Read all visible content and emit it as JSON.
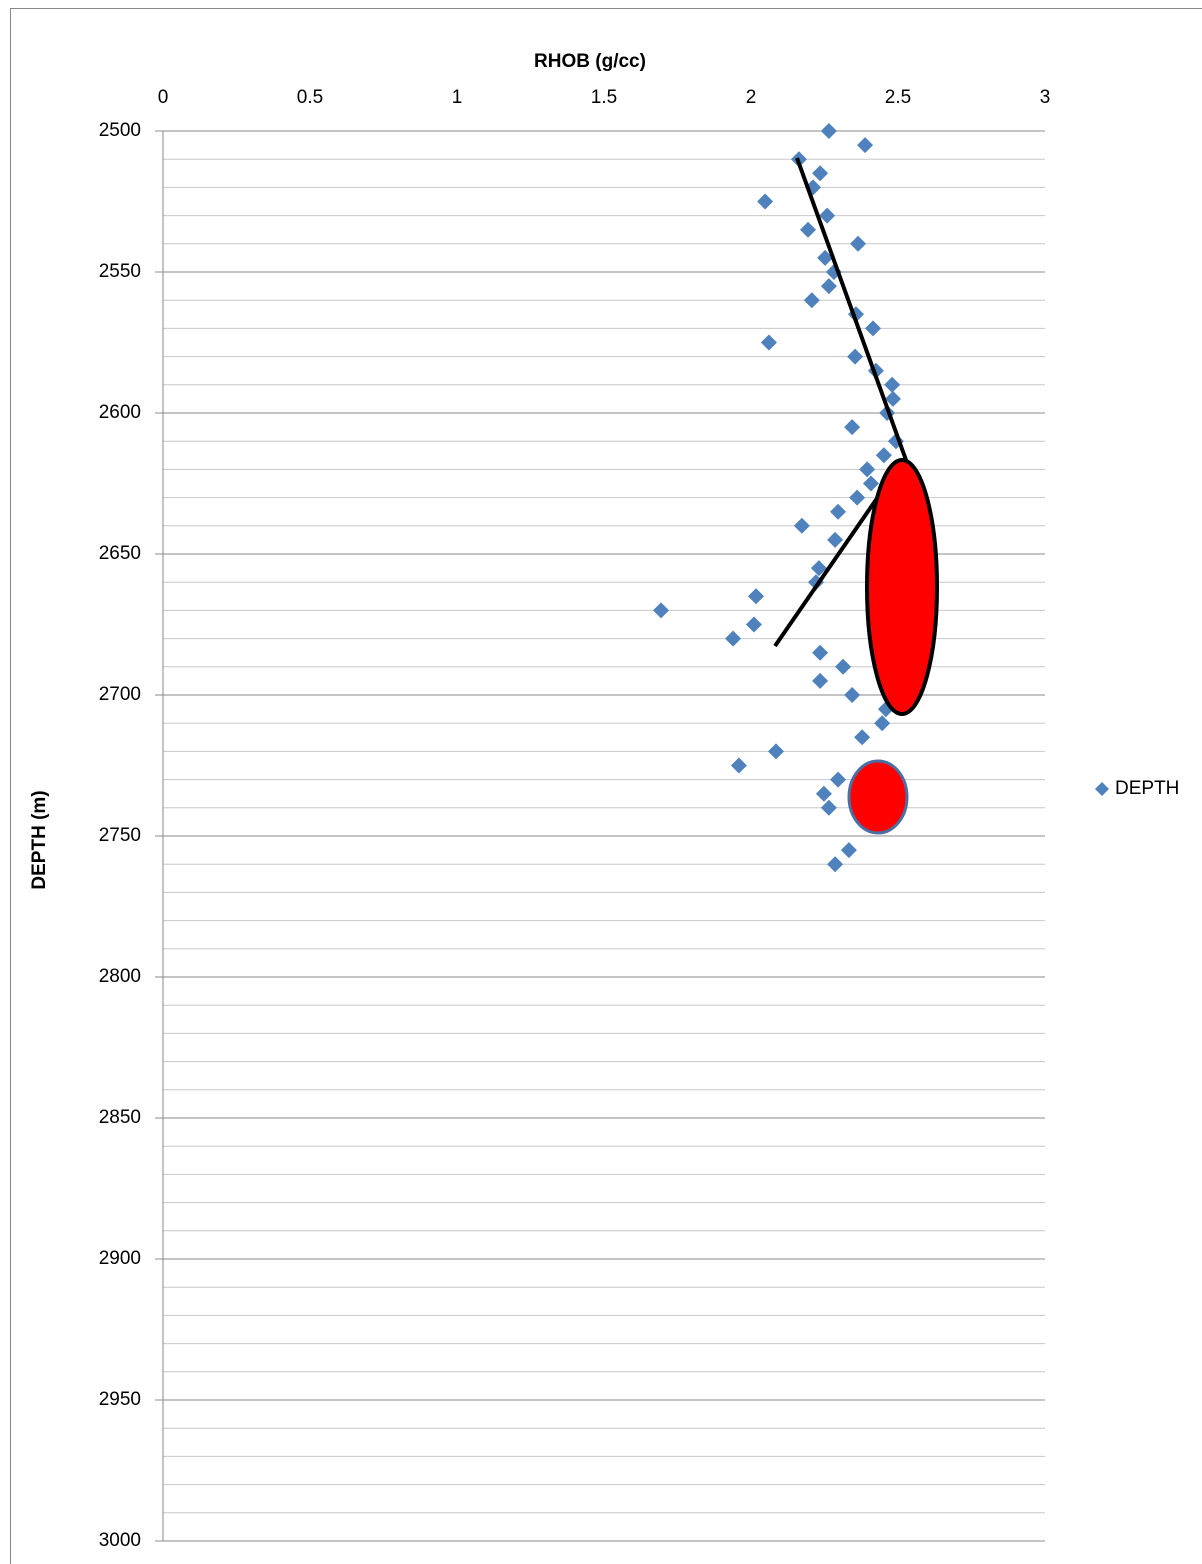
{
  "chart_data": {
    "type": "scatter",
    "x_title": "RHOB (g/cc)",
    "y_title": "DEPTH (m)",
    "x": [
      2.265,
      2.388,
      2.163,
      2.235,
      2.211,
      2.048,
      2.259,
      2.194,
      2.364,
      2.252,
      2.282,
      2.265,
      2.207,
      2.357,
      2.415,
      2.061,
      2.354,
      2.425,
      2.48,
      2.483,
      2.463,
      2.344,
      2.493,
      2.452,
      2.395,
      2.408,
      2.361,
      2.296,
      2.173,
      2.286,
      2.231,
      2.221,
      2.017,
      1.694,
      2.01,
      1.939,
      2.235,
      2.313,
      2.235,
      2.344,
      2.459,
      2.446,
      2.378,
      2.085,
      1.959,
      2.296,
      2.248,
      2.265,
      2.333,
      2.286
    ],
    "series": [
      {
        "name": "DEPTH",
        "color": "#4f81bd",
        "values": [
          2500,
          2505,
          2510,
          2515,
          2520,
          2525,
          2530,
          2535,
          2540,
          2545,
          2550,
          2555,
          2560,
          2565,
          2570,
          2575,
          2580,
          2585,
          2590,
          2595,
          2600,
          2605,
          2610,
          2615,
          2620,
          2625,
          2630,
          2635,
          2640,
          2645,
          2655,
          2660,
          2665,
          2670,
          2675,
          2680,
          2685,
          2690,
          2695,
          2700,
          2705,
          2710,
          2715,
          2720,
          2725,
          2730,
          2735,
          2740,
          2755,
          2760
        ]
      }
    ],
    "xlim": [
      0,
      3
    ],
    "xticks": [
      0,
      0.5,
      1,
      1.5,
      2,
      2.5,
      3
    ],
    "x_axis_position": "top",
    "ylim": [
      2500,
      3000
    ],
    "yticks": [
      2500,
      2550,
      2600,
      2650,
      2700,
      2750,
      2800,
      2850,
      2900,
      2950,
      3000
    ],
    "y_reversed": true,
    "y_minor_ticks": [
      2510,
      2520,
      2530,
      2540,
      2560,
      2570,
      2580,
      2590,
      2610,
      2620,
      2630,
      2640,
      2660,
      2670,
      2680,
      2690,
      2710,
      2720,
      2730,
      2740,
      2760,
      2770,
      2780,
      2790,
      2810,
      2820,
      2830,
      2840,
      2860,
      2870,
      2880,
      2890,
      2910,
      2920,
      2930,
      2940,
      2960,
      2970,
      2980,
      2990
    ],
    "grid": true,
    "legend": "right"
  }
}
